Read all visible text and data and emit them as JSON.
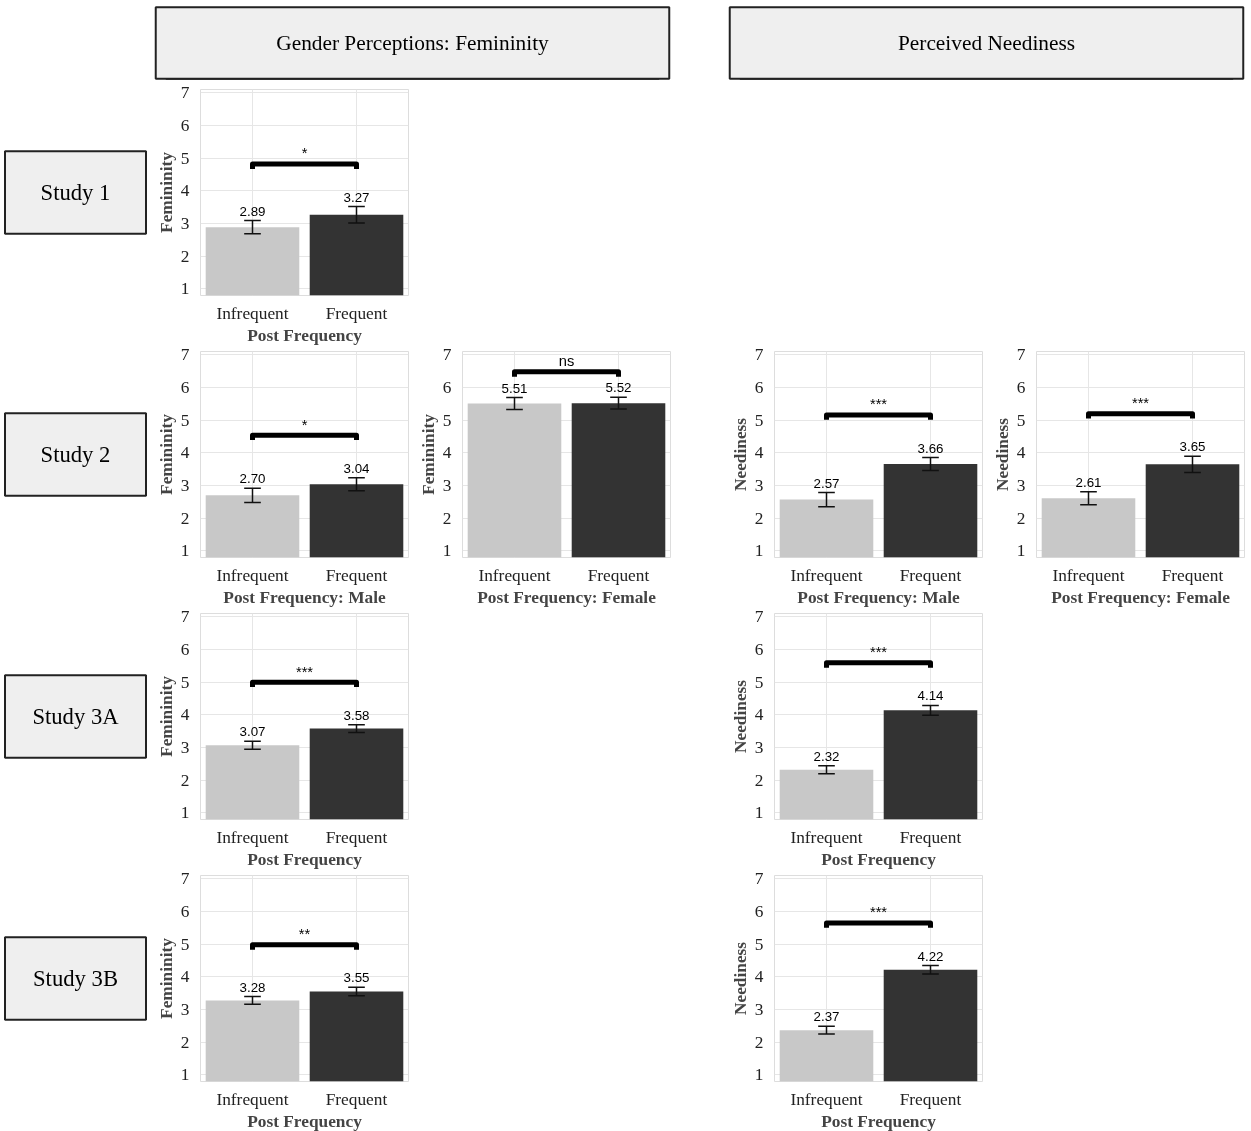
{
  "chart_data": [
    {
      "type": "other",
      "title": "Gender Perceptions: Femininity"
    },
    {
      "type": "other",
      "title": "Perceived Neediness"
    },
    {
      "type": "other",
      "title": "Study 1"
    },
    {
      "type": "bar",
      "categories": [
        "Infrequent",
        "Frequent"
      ],
      "values": [
        2.89,
        3.27
      ],
      "errors": [
        0.2,
        0.25
      ],
      "value_labels": [
        "2.89",
        "3.27"
      ],
      "colors": [
        "#c8c8c8",
        "#333333"
      ],
      "xlabel": "Post Frequency",
      "ylabel": "Femininity",
      "ylim": [
        0.8,
        7.1
      ],
      "yticks": [
        1,
        2,
        3,
        4,
        5,
        6,
        7
      ],
      "grid": true,
      "annotations": [
        "*"
      ]
    },
    {
      "type": "other",
      "title": "Study 2"
    },
    {
      "type": "bar",
      "categories": [
        "Infrequent",
        "Frequent"
      ],
      "values": [
        2.7,
        3.04
      ],
      "errors": [
        0.22,
        0.2
      ],
      "value_labels": [
        "2.70",
        "3.04"
      ],
      "colors": [
        "#c8c8c8",
        "#333333"
      ],
      "xlabel": "Post Frequency: Male",
      "ylabel": "Femininity",
      "ylim": [
        0.8,
        7.1
      ],
      "yticks": [
        1,
        2,
        3,
        4,
        5,
        6,
        7
      ],
      "grid": true,
      "annotations": [
        "*"
      ]
    },
    {
      "type": "bar",
      "categories": [
        "Infrequent",
        "Frequent"
      ],
      "values": [
        5.51,
        5.52
      ],
      "errors": [
        0.18,
        0.18
      ],
      "value_labels": [
        "5.51",
        "5.52"
      ],
      "colors": [
        "#c8c8c8",
        "#333333"
      ],
      "xlabel": "Post Frequency: Female",
      "ylabel": "Femininity",
      "ylim": [
        0.8,
        7.1
      ],
      "yticks": [
        1,
        2,
        3,
        4,
        5,
        6,
        7
      ],
      "grid": true,
      "annotations": [
        "ns"
      ]
    },
    {
      "type": "bar",
      "categories": [
        "Infrequent",
        "Frequent"
      ],
      "values": [
        2.57,
        3.66
      ],
      "errors": [
        0.22,
        0.2
      ],
      "value_labels": [
        "2.57",
        "3.66"
      ],
      "colors": [
        "#c8c8c8",
        "#333333"
      ],
      "xlabel": "Post Frequency: Male",
      "ylabel": "Neediness",
      "ylim": [
        0.8,
        7.1
      ],
      "yticks": [
        1,
        2,
        3,
        4,
        5,
        6,
        7
      ],
      "grid": true,
      "annotations": [
        "***"
      ]
    },
    {
      "type": "bar",
      "categories": [
        "Infrequent",
        "Frequent"
      ],
      "values": [
        2.61,
        3.65
      ],
      "errors": [
        0.2,
        0.25
      ],
      "value_labels": [
        "2.61",
        "3.65"
      ],
      "colors": [
        "#c8c8c8",
        "#333333"
      ],
      "xlabel": "Post Frequency: Female",
      "ylabel": "Neediness",
      "ylim": [
        0.8,
        7.1
      ],
      "yticks": [
        1,
        2,
        3,
        4,
        5,
        6,
        7
      ],
      "grid": true,
      "annotations": [
        "***"
      ]
    },
    {
      "type": "other",
      "title": "Study 3A"
    },
    {
      "type": "bar",
      "categories": [
        "Infrequent",
        "Frequent"
      ],
      "values": [
        3.07,
        3.58
      ],
      "errors": [
        0.12,
        0.12
      ],
      "value_labels": [
        "3.07",
        "3.58"
      ],
      "colors": [
        "#c8c8c8",
        "#333333"
      ],
      "xlabel": "Post Frequency",
      "ylabel": "Femininity",
      "ylim": [
        0.8,
        7.1
      ],
      "yticks": [
        1,
        2,
        3,
        4,
        5,
        6,
        7
      ],
      "grid": true,
      "annotations": [
        "***"
      ]
    },
    {
      "type": "bar",
      "categories": [
        "Infrequent",
        "Frequent"
      ],
      "values": [
        2.32,
        4.14
      ],
      "errors": [
        0.12,
        0.15
      ],
      "value_labels": [
        "2.32",
        "4.14"
      ],
      "colors": [
        "#c8c8c8",
        "#333333"
      ],
      "xlabel": "Post Frequency",
      "ylabel": "Neediness",
      "ylim": [
        0.8,
        7.1
      ],
      "yticks": [
        1,
        2,
        3,
        4,
        5,
        6,
        7
      ],
      "grid": true,
      "annotations": [
        "***"
      ]
    },
    {
      "type": "other",
      "title": "Study 3B"
    },
    {
      "type": "bar",
      "categories": [
        "Infrequent",
        "Frequent"
      ],
      "values": [
        3.28,
        3.55
      ],
      "errors": [
        0.12,
        0.13
      ],
      "value_labels": [
        "3.28",
        "3.55"
      ],
      "colors": [
        "#c8c8c8",
        "#333333"
      ],
      "xlabel": "Post Frequency",
      "ylabel": "Femininity",
      "ylim": [
        0.8,
        7.1
      ],
      "yticks": [
        1,
        2,
        3,
        4,
        5,
        6,
        7
      ],
      "grid": true,
      "annotations": [
        "**"
      ]
    },
    {
      "type": "bar",
      "categories": [
        "Infrequent",
        "Frequent"
      ],
      "values": [
        2.37,
        4.22
      ],
      "errors": [
        0.12,
        0.13
      ],
      "value_labels": [
        "2.37",
        "4.22"
      ],
      "colors": [
        "#c8c8c8",
        "#333333"
      ],
      "xlabel": "Post Frequency",
      "ylabel": "Neediness",
      "ylim": [
        0.8,
        7.1
      ],
      "yticks": [
        1,
        2,
        3,
        4,
        5,
        6,
        7
      ],
      "grid": true,
      "annotations": [
        "***"
      ]
    }
  ]
}
